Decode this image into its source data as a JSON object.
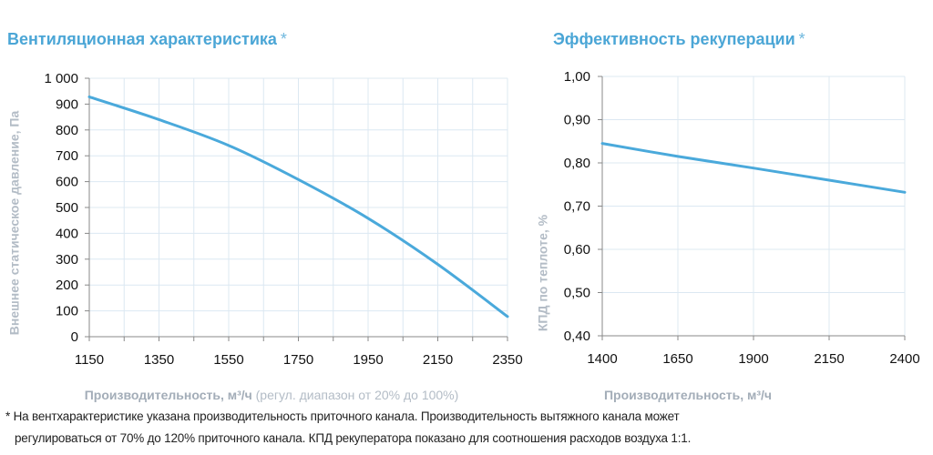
{
  "titles": {
    "left": "Вентиляционная характеристика",
    "right": "Эффективность рекуперации",
    "asterisk": "*"
  },
  "footnote": {
    "line1": "* На вентхарактеристике указана производительность приточного канала. Производительность вытяжного канала может",
    "line2": "регулироваться от 70% до 120% приточного канала. КПД рекуператора показано для соотношения расходов воздуха 1:1."
  },
  "colors": {
    "accent": "#4ba6d6",
    "line": "#4aa9db",
    "grid": "#dce8f2",
    "axis_title": "#b3bcc6"
  },
  "chart_data": [
    {
      "type": "line",
      "title": "Вентиляционная характеристика *",
      "xlabel": "Производительность, м³/ч",
      "xlabel_note": "(регул. диапазон от 20% до 100%)",
      "ylabel": "Внешнее статическое давление, Па",
      "x": [
        1150,
        1350,
        1550,
        1750,
        1950,
        2150,
        2350
      ],
      "values": [
        928,
        840,
        740,
        608,
        458,
        280,
        78
      ],
      "xlim": [
        1150,
        2350
      ],
      "ylim": [
        0,
        1000
      ],
      "xticks": [
        "1150",
        "1350",
        "1550",
        "1750",
        "1950",
        "2150",
        "2350"
      ],
      "yticks": [
        "0",
        "100",
        "200",
        "300",
        "400",
        "500",
        "600",
        "700",
        "800",
        "900",
        "1 000"
      ],
      "grid": true
    },
    {
      "type": "line",
      "title": "Эффективность рекуперации *",
      "xlabel": "Производительность, м³/ч",
      "ylabel": "КПД по теплоте, %",
      "x": [
        1400,
        1650,
        1900,
        2150,
        2400
      ],
      "values": [
        0.845,
        0.815,
        0.788,
        0.76,
        0.732
      ],
      "xlim": [
        1400,
        2400
      ],
      "ylim": [
        0.4,
        1.0
      ],
      "xticks": [
        "1400",
        "1650",
        "1900",
        "2150",
        "2400"
      ],
      "yticks": [
        "0,40",
        "0,50",
        "0,60",
        "0,70",
        "0,80",
        "0,90",
        "1,00"
      ],
      "grid": true
    }
  ]
}
